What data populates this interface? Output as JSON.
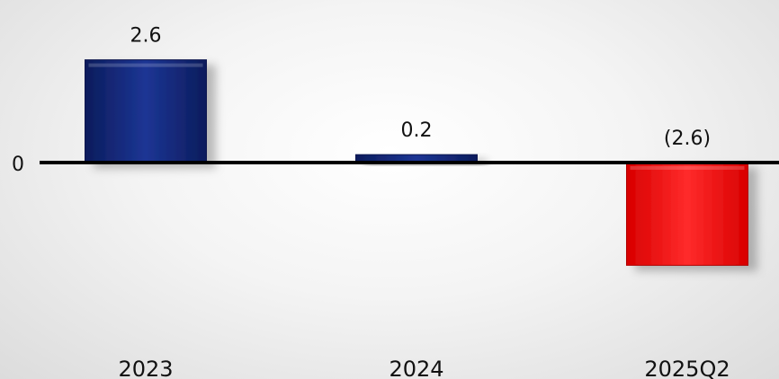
{
  "chart_data": {
    "type": "bar",
    "categories": [
      "2023",
      "2024",
      "2025Q2"
    ],
    "values": [
      2.6,
      0.2,
      -2.6
    ],
    "value_labels": [
      "2.6",
      "0.2",
      "(2.6)"
    ],
    "zero_label": "0",
    "colors": {
      "positive": "#14287a",
      "negative": "#ff1a1a",
      "negative_label": "#ff0000",
      "axis": "#000000"
    },
    "grid": false,
    "legend": "none"
  }
}
